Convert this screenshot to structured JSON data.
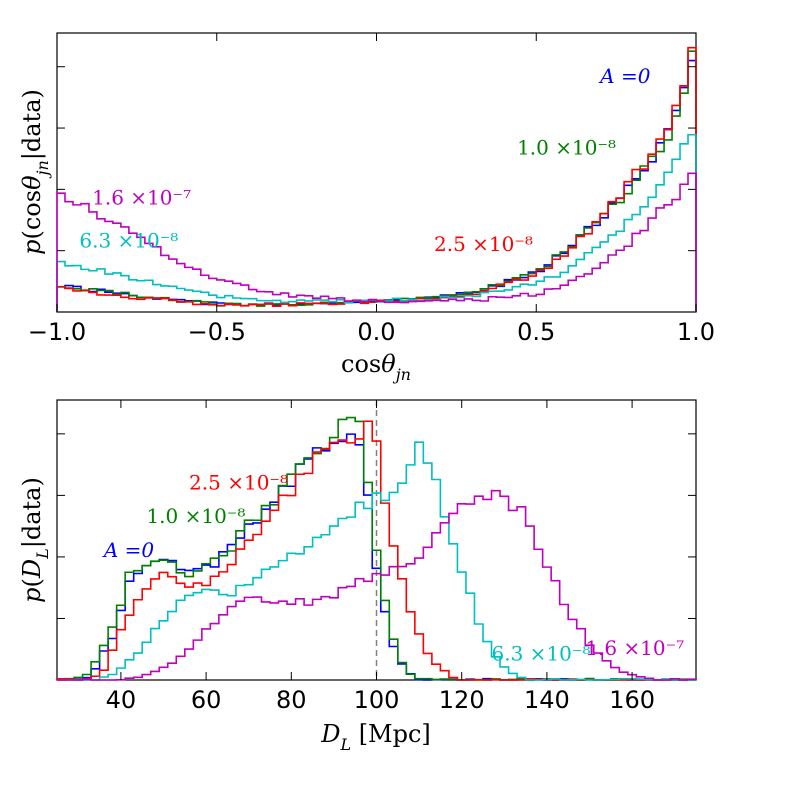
{
  "colors": {
    "A0": "#0000ff",
    "A1e-8": "#008000",
    "A2.5e-8": "#ff0000",
    "A6.3e-8": "#00bfbf",
    "A1.6e-7": "#bf00bf"
  },
  "chart_data": [
    {
      "id": "top",
      "type": "histogram",
      "xlabel": "cosθjn",
      "ylabel": "p(cosθjn|data)",
      "xlim": [
        -1.0,
        1.0
      ],
      "ylim": [
        0,
        3.9
      ],
      "xticks": [
        -1.0,
        -0.5,
        0.0,
        0.5,
        1.0
      ],
      "xtick_labels": [
        "−1.0",
        "−0.5",
        "0.0",
        "0.5",
        "1.0"
      ],
      "ytick_count": 4,
      "bins": 80,
      "series": [
        {
          "key": "A0",
          "name": "A=0",
          "label_display": "A =0",
          "amp": 0.0,
          "knots": [
            [
              -1.0,
              0.38
            ],
            [
              -0.9,
              0.32
            ],
            [
              -0.7,
              0.2
            ],
            [
              -0.5,
              0.11
            ],
            [
              -0.3,
              0.1
            ],
            [
              -0.1,
              0.13
            ],
            [
              0.1,
              0.17
            ],
            [
              0.3,
              0.26
            ],
            [
              0.5,
              0.55
            ],
            [
              0.6,
              0.9
            ],
            [
              0.7,
              1.3
            ],
            [
              0.8,
              1.8
            ],
            [
              0.9,
              2.4
            ],
            [
              0.95,
              2.9
            ],
            [
              1.0,
              3.6
            ]
          ],
          "values": []
        },
        {
          "key": "A1e-8",
          "name": "1.0 ×10^-8",
          "label_display": "1.0 ×10⁻⁸",
          "amp": 0.0,
          "knots": [
            [
              -1.0,
              0.36
            ],
            [
              -0.9,
              0.31
            ],
            [
              -0.7,
              0.2
            ],
            [
              -0.5,
              0.11
            ],
            [
              -0.3,
              0.1
            ],
            [
              -0.1,
              0.13
            ],
            [
              0.1,
              0.17
            ],
            [
              0.3,
              0.26
            ],
            [
              0.5,
              0.55
            ],
            [
              0.6,
              0.88
            ],
            [
              0.7,
              1.28
            ],
            [
              0.8,
              1.78
            ],
            [
              0.9,
              2.35
            ],
            [
              0.95,
              2.95
            ],
            [
              1.0,
              3.75
            ]
          ],
          "values": []
        },
        {
          "key": "A2.5e-8",
          "name": "2.5 ×10^-8",
          "label_display": "2.5 ×10⁻⁸",
          "amp": 0.0,
          "knots": [
            [
              -1.0,
              0.33
            ],
            [
              -0.9,
              0.28
            ],
            [
              -0.7,
              0.18
            ],
            [
              -0.5,
              0.1
            ],
            [
              -0.3,
              0.1
            ],
            [
              -0.1,
              0.13
            ],
            [
              0.1,
              0.16
            ],
            [
              0.3,
              0.24
            ],
            [
              0.5,
              0.52
            ],
            [
              0.6,
              0.85
            ],
            [
              0.7,
              1.3
            ],
            [
              0.8,
              1.85
            ],
            [
              0.9,
              2.45
            ],
            [
              0.95,
              3.0
            ],
            [
              1.0,
              3.85
            ]
          ],
          "values": []
        },
        {
          "key": "A6.3e-8",
          "name": "6.3 ×10^-8",
          "label_display": "6.3 ×10⁻⁸",
          "amp": 0.0,
          "knots": [
            [
              -1.0,
              0.72
            ],
            [
              -0.9,
              0.62
            ],
            [
              -0.7,
              0.42
            ],
            [
              -0.5,
              0.22
            ],
            [
              -0.3,
              0.14
            ],
            [
              -0.1,
              0.15
            ],
            [
              0.1,
              0.17
            ],
            [
              0.3,
              0.22
            ],
            [
              0.5,
              0.4
            ],
            [
              0.6,
              0.6
            ],
            [
              0.7,
              0.9
            ],
            [
              0.8,
              1.3
            ],
            [
              0.9,
              1.85
            ],
            [
              0.95,
              2.2
            ],
            [
              1.0,
              2.6
            ]
          ],
          "values": []
        },
        {
          "key": "A1.6e-7",
          "name": "1.6 ×10^-7",
          "label_display": "1.6 ×10⁻⁷",
          "amp": 0.0,
          "knots": [
            [
              -1.0,
              1.7
            ],
            [
              -0.9,
              1.45
            ],
            [
              -0.8,
              1.2
            ],
            [
              -0.7,
              0.9
            ],
            [
              -0.5,
              0.45
            ],
            [
              -0.3,
              0.25
            ],
            [
              -0.1,
              0.17
            ],
            [
              0.1,
              0.15
            ],
            [
              0.3,
              0.16
            ],
            [
              0.5,
              0.25
            ],
            [
              0.6,
              0.4
            ],
            [
              0.7,
              0.65
            ],
            [
              0.8,
              1.0
            ],
            [
              0.9,
              1.45
            ],
            [
              0.95,
              1.7
            ],
            [
              1.0,
              1.95
            ]
          ],
          "values": []
        }
      ],
      "label_anchors": {
        "A0": {
          "x": 0.7,
          "y": 3.2
        },
        "A1e-8": {
          "x": 0.44,
          "y": 2.2
        },
        "A2.5e-8": {
          "x": 0.18,
          "y": 0.85
        },
        "A6.3e-8": {
          "x": -0.93,
          "y": 0.9
        },
        "A1.6e-7": {
          "x": -0.89,
          "y": 1.5
        }
      }
    },
    {
      "id": "bottom",
      "type": "histogram",
      "xlabel": "DL [Mpc]",
      "ylabel": "p(DL|data)",
      "xlim": [
        25,
        175
      ],
      "ylim": [
        0,
        1.0
      ],
      "xticks": [
        40,
        60,
        80,
        100,
        120,
        140,
        160
      ],
      "xtick_labels": [
        "40",
        "60",
        "80",
        "100",
        "120",
        "140",
        "160"
      ],
      "ytick_count": 4,
      "bins": 75,
      "vline": 100,
      "series": [
        {
          "key": "A0",
          "name": "A=0",
          "label_display": "A =0",
          "knots": [
            [
              25,
              0.0
            ],
            [
              30,
              0.0
            ],
            [
              33,
              0.02
            ],
            [
              38,
              0.15
            ],
            [
              42,
              0.35
            ],
            [
              46,
              0.42
            ],
            [
              50,
              0.44
            ],
            [
              55,
              0.38
            ],
            [
              60,
              0.4
            ],
            [
              65,
              0.45
            ],
            [
              70,
              0.55
            ],
            [
              75,
              0.62
            ],
            [
              80,
              0.7
            ],
            [
              85,
              0.82
            ],
            [
              90,
              0.84
            ],
            [
              95,
              0.88
            ],
            [
              97,
              0.82
            ],
            [
              98,
              0.65
            ],
            [
              100,
              0.4
            ],
            [
              102,
              0.24
            ],
            [
              104,
              0.12
            ],
            [
              106,
              0.06
            ],
            [
              108,
              0.02
            ],
            [
              110,
              0.0
            ],
            [
              175,
              0.0
            ]
          ],
          "values": []
        },
        {
          "key": "A1e-8",
          "name": "1.0 ×10^-8",
          "label_display": "1.0 ×10⁻⁸",
          "knots": [
            [
              25,
              0.0
            ],
            [
              30,
              0.01
            ],
            [
              33,
              0.03
            ],
            [
              38,
              0.18
            ],
            [
              42,
              0.37
            ],
            [
              46,
              0.42
            ],
            [
              50,
              0.43
            ],
            [
              55,
              0.38
            ],
            [
              60,
              0.4
            ],
            [
              65,
              0.46
            ],
            [
              70,
              0.56
            ],
            [
              75,
              0.63
            ],
            [
              80,
              0.72
            ],
            [
              85,
              0.82
            ],
            [
              90,
              0.86
            ],
            [
              94,
              0.96
            ],
            [
              96,
              0.92
            ],
            [
              98,
              0.7
            ],
            [
              100,
              0.45
            ],
            [
              102,
              0.28
            ],
            [
              104,
              0.14
            ],
            [
              106,
              0.06
            ],
            [
              108,
              0.02
            ],
            [
              110,
              0.0
            ],
            [
              175,
              0.0
            ]
          ],
          "values": []
        },
        {
          "key": "A2.5e-8",
          "name": "2.5 ×10^-8",
          "label_display": "2.5 ×10⁻⁸",
          "knots": [
            [
              25,
              0.0
            ],
            [
              33,
              0.0
            ],
            [
              36,
              0.04
            ],
            [
              40,
              0.18
            ],
            [
              45,
              0.33
            ],
            [
              50,
              0.37
            ],
            [
              55,
              0.33
            ],
            [
              60,
              0.35
            ],
            [
              65,
              0.4
            ],
            [
              70,
              0.5
            ],
            [
              75,
              0.58
            ],
            [
              80,
              0.68
            ],
            [
              85,
              0.78
            ],
            [
              90,
              0.84
            ],
            [
              95,
              0.88
            ],
            [
              99,
              0.9
            ],
            [
              101,
              0.75
            ],
            [
              103,
              0.55
            ],
            [
              106,
              0.35
            ],
            [
              109,
              0.2
            ],
            [
              112,
              0.1
            ],
            [
              115,
              0.04
            ],
            [
              118,
              0.01
            ],
            [
              120,
              0.0
            ],
            [
              175,
              0.0
            ]
          ],
          "values": []
        },
        {
          "key": "A6.3e-8",
          "name": "6.3 ×10^-8",
          "label_display": "6.3 ×10⁻⁸",
          "knots": [
            [
              25,
              0.0
            ],
            [
              35,
              0.0
            ],
            [
              40,
              0.04
            ],
            [
              45,
              0.12
            ],
            [
              50,
              0.22
            ],
            [
              55,
              0.3
            ],
            [
              60,
              0.32
            ],
            [
              65,
              0.3
            ],
            [
              70,
              0.34
            ],
            [
              75,
              0.4
            ],
            [
              80,
              0.44
            ],
            [
              85,
              0.48
            ],
            [
              90,
              0.53
            ],
            [
              95,
              0.6
            ],
            [
              100,
              0.66
            ],
            [
              103,
              0.62
            ],
            [
              105,
              0.7
            ],
            [
              108,
              0.78
            ],
            [
              110,
              0.82
            ],
            [
              113,
              0.77
            ],
            [
              116,
              0.6
            ],
            [
              120,
              0.4
            ],
            [
              124,
              0.2
            ],
            [
              128,
              0.08
            ],
            [
              132,
              0.02
            ],
            [
              135,
              0.0
            ],
            [
              175,
              0.0
            ]
          ],
          "values": []
        },
        {
          "key": "A1.6e-7",
          "name": "1.6 ×10^-7",
          "label_display": "1.6 ×10⁻⁷",
          "knots": [
            [
              25,
              0.0
            ],
            [
              40,
              0.0
            ],
            [
              45,
              0.01
            ],
            [
              50,
              0.04
            ],
            [
              55,
              0.1
            ],
            [
              60,
              0.18
            ],
            [
              65,
              0.25
            ],
            [
              70,
              0.29
            ],
            [
              75,
              0.29
            ],
            [
              80,
              0.28
            ],
            [
              85,
              0.28
            ],
            [
              90,
              0.3
            ],
            [
              95,
              0.34
            ],
            [
              100,
              0.38
            ],
            [
              105,
              0.4
            ],
            [
              110,
              0.45
            ],
            [
              115,
              0.55
            ],
            [
              120,
              0.62
            ],
            [
              125,
              0.64
            ],
            [
              130,
              0.66
            ],
            [
              135,
              0.58
            ],
            [
              140,
              0.4
            ],
            [
              145,
              0.25
            ],
            [
              150,
              0.13
            ],
            [
              155,
              0.05
            ],
            [
              160,
              0.02
            ],
            [
              165,
              0.0
            ],
            [
              175,
              0.0
            ]
          ],
          "values": []
        }
      ],
      "label_anchors": {
        "A0": {
          "x": 36,
          "y": 0.44
        },
        "A1e-8": {
          "x": 46,
          "y": 0.56
        },
        "A2.5e-8": {
          "x": 56,
          "y": 0.68
        },
        "A6.3e-8": {
          "x": 127,
          "y": 0.07
        },
        "A1.6e-7": {
          "x": 149,
          "y": 0.09
        }
      }
    }
  ]
}
